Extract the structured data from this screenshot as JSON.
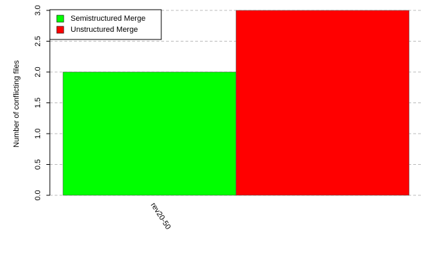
{
  "chart_data": {
    "type": "bar",
    "y_label": "Number of conflicting files",
    "categories": [
      "rev20-50"
    ],
    "series": [
      {
        "name": "Semistructured Merge",
        "color": "#00ff00",
        "values": [
          2
        ]
      },
      {
        "name": "Unstructured Merge",
        "color": "#ff0000",
        "values": [
          3
        ]
      }
    ],
    "ylim": [
      0,
      3
    ],
    "yticks": [
      {
        "value": 0,
        "label": "0.0"
      },
      0.5,
      {
        "value": 1,
        "label": "1.0"
      },
      1.5,
      {
        "value": 2,
        "label": "2.0"
      },
      2.5,
      {
        "value": 3,
        "label": "3.0"
      }
    ],
    "grid": true,
    "legend": "topleft"
  }
}
